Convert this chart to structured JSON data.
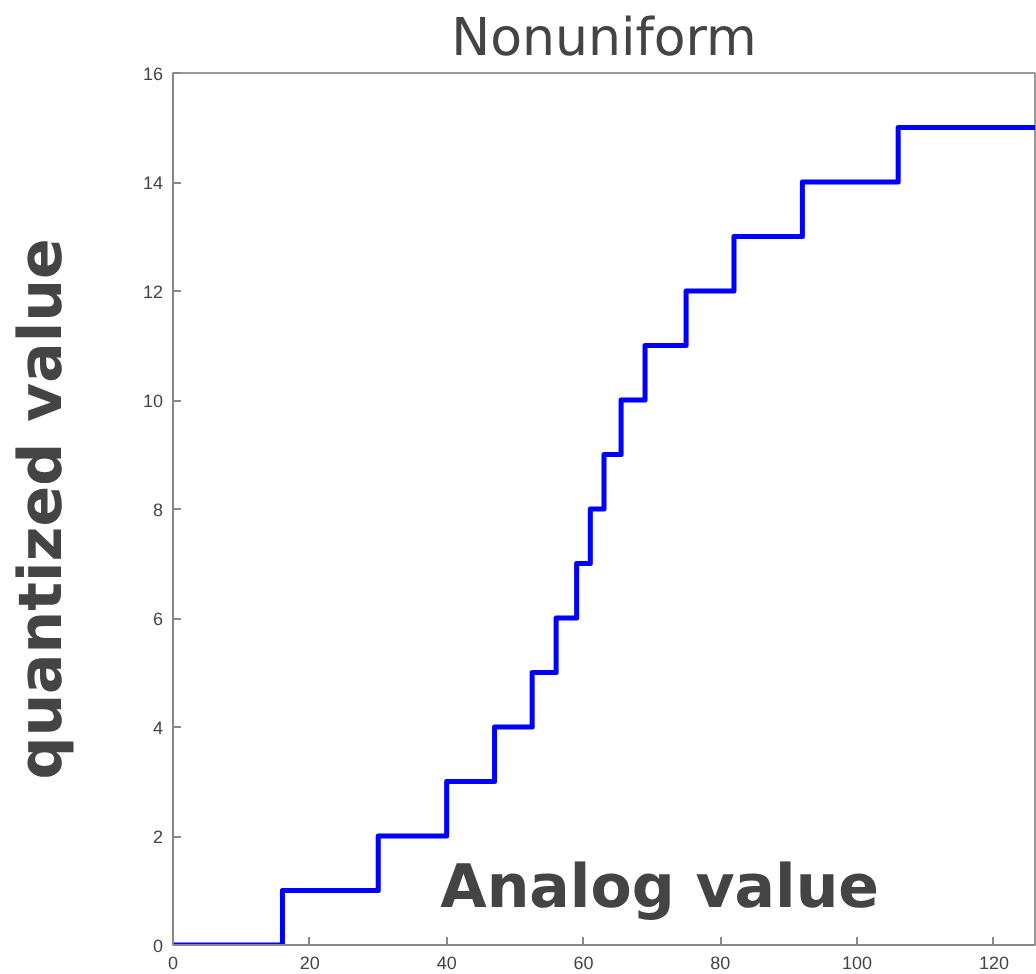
{
  "chart_data": {
    "type": "step",
    "title": "Nonuniform",
    "xlabel": "Analog value",
    "ylabel": "quantized value",
    "x": [
      0,
      16,
      30,
      40,
      47,
      52.5,
      56,
      59,
      61,
      63,
      65.5,
      69,
      75,
      82,
      92,
      106,
      126
    ],
    "series": [
      {
        "color": "#0000ff",
        "values": [
          0,
          1,
          2,
          3,
          4,
          5,
          6,
          7,
          8,
          9,
          10,
          11,
          12,
          13,
          14,
          15,
          15
        ]
      }
    ],
    "xlim": [
      0,
      126
    ],
    "ylim": [
      0,
      16
    ],
    "xticks": [
      0,
      20,
      40,
      60,
      80,
      100,
      120
    ],
    "yticks": [
      0,
      2,
      4,
      6,
      8,
      10,
      12,
      14,
      16
    ],
    "grid": false
  }
}
